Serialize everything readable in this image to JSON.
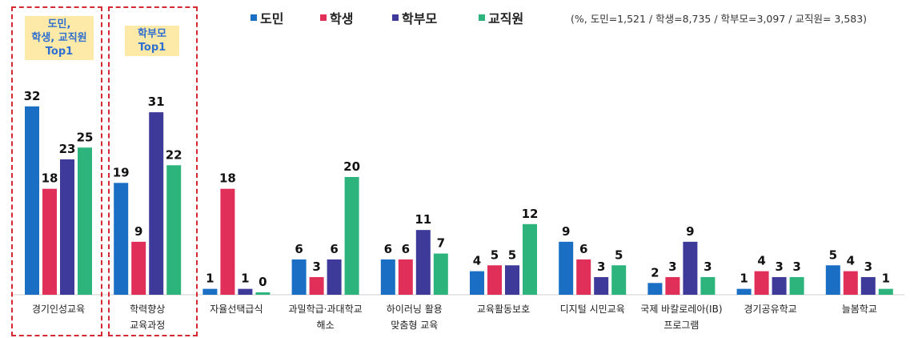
{
  "chart_data": {
    "type": "bar",
    "categories": [
      "경기인성교육",
      "학력향상\n교육과정",
      "자율선택급식",
      "과밀학급·과대학교\n해소",
      "하이러닝 활용\n맞춤형 교육",
      "교육활동보호",
      "디지털 시민교육",
      "국제 바칼로레아(IB)\n프로그램",
      "경기공유학교",
      "늘봄학교"
    ],
    "series": [
      {
        "name": "도민",
        "color": "#1a6fc4",
        "values": [
          32,
          19,
          1,
          6,
          6,
          4,
          9,
          2,
          1,
          5
        ]
      },
      {
        "name": "학생",
        "color": "#e0305a",
        "values": [
          18,
          9,
          18,
          3,
          6,
          5,
          6,
          3,
          4,
          4
        ]
      },
      {
        "name": "학부모",
        "color": "#3e3a9a",
        "values": [
          23,
          31,
          1,
          6,
          11,
          5,
          3,
          9,
          3,
          3
        ]
      },
      {
        "name": "교직원",
        "color": "#2db47d",
        "values": [
          25,
          22,
          0,
          20,
          7,
          12,
          5,
          3,
          3,
          1
        ]
      }
    ],
    "note": "(%, 도민=1,521 / 학생=8,735 / 학부모=3,097 / 교직원= 3,583)",
    "highlights": [
      "도민,\n학생, 교직원\nTop1",
      "학부모\nTop1"
    ],
    "ylim": [
      0,
      32
    ],
    "legend_position": "top"
  }
}
